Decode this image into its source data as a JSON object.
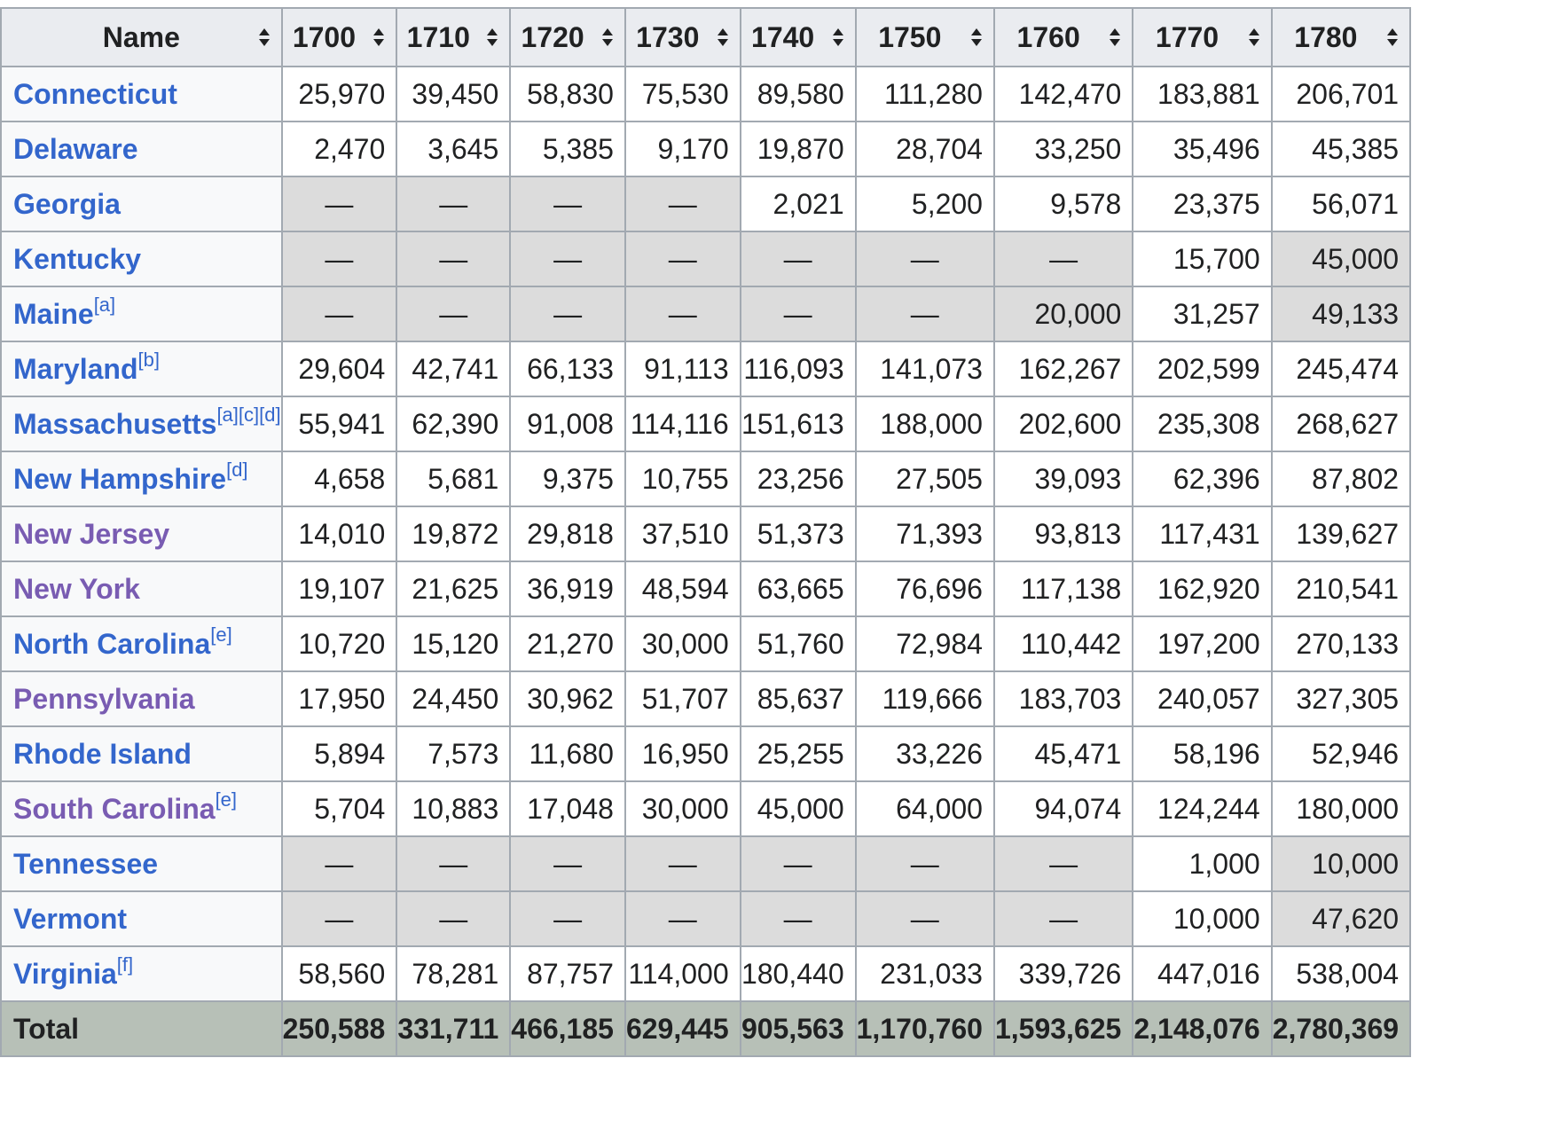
{
  "columns": [
    "Name",
    "1700",
    "1710",
    "1720",
    "1730",
    "1740",
    "1750",
    "1760",
    "1770",
    "1780"
  ],
  "sort_icon": "sort-updown-icon",
  "colors": {
    "link": "#3366cc",
    "visited_link": "#795cb2",
    "header_bg": "#eaecf0",
    "na_cell_bg": "#dcdcdc",
    "total_bg": "#b7c0b7",
    "border": "#a2a9b1"
  },
  "rows": [
    {
      "name": "Connecticut",
      "visited": false,
      "notes": "",
      "values": [
        "25,970",
        "39,450",
        "58,830",
        "75,530",
        "89,580",
        "111,280",
        "142,470",
        "183,881",
        "206,701"
      ]
    },
    {
      "name": "Delaware",
      "visited": false,
      "notes": "",
      "values": [
        "2,470",
        "3,645",
        "5,385",
        "9,170",
        "19,870",
        "28,704",
        "33,250",
        "35,496",
        "45,385"
      ]
    },
    {
      "name": "Georgia",
      "visited": false,
      "notes": "",
      "values": [
        "—",
        "—",
        "—",
        "—",
        "2,021",
        "5,200",
        "9,578",
        "23,375",
        "56,071"
      ]
    },
    {
      "name": "Kentucky",
      "visited": false,
      "notes": "",
      "values": [
        "—",
        "—",
        "—",
        "—",
        "—",
        "—",
        "—",
        "15,700",
        "45,000"
      ],
      "shaded_values": [
        8
      ]
    },
    {
      "name": "Maine",
      "visited": false,
      "notes": "[a]",
      "values": [
        "—",
        "—",
        "—",
        "—",
        "—",
        "—",
        "20,000",
        "31,257",
        "49,133"
      ],
      "shaded_values": [
        6,
        8
      ]
    },
    {
      "name": "Maryland",
      "visited": false,
      "notes": "[b]",
      "values": [
        "29,604",
        "42,741",
        "66,133",
        "91,113",
        "116,093",
        "141,073",
        "162,267",
        "202,599",
        "245,474"
      ]
    },
    {
      "name": "Massachusetts",
      "visited": false,
      "notes": "[a][c][d]",
      "values": [
        "55,941",
        "62,390",
        "91,008",
        "114,116",
        "151,613",
        "188,000",
        "202,600",
        "235,308",
        "268,627"
      ]
    },
    {
      "name": "New Hampshire",
      "visited": false,
      "notes": "[d]",
      "values": [
        "4,658",
        "5,681",
        "9,375",
        "10,755",
        "23,256",
        "27,505",
        "39,093",
        "62,396",
        "87,802"
      ]
    },
    {
      "name": "New Jersey",
      "visited": true,
      "notes": "",
      "values": [
        "14,010",
        "19,872",
        "29,818",
        "37,510",
        "51,373",
        "71,393",
        "93,813",
        "117,431",
        "139,627"
      ]
    },
    {
      "name": "New York",
      "visited": true,
      "notes": "",
      "values": [
        "19,107",
        "21,625",
        "36,919",
        "48,594",
        "63,665",
        "76,696",
        "117,138",
        "162,920",
        "210,541"
      ]
    },
    {
      "name": "North Carolina",
      "visited": false,
      "notes": "[e]",
      "values": [
        "10,720",
        "15,120",
        "21,270",
        "30,000",
        "51,760",
        "72,984",
        "110,442",
        "197,200",
        "270,133"
      ]
    },
    {
      "name": "Pennsylvania",
      "visited": true,
      "notes": "",
      "values": [
        "17,950",
        "24,450",
        "30,962",
        "51,707",
        "85,637",
        "119,666",
        "183,703",
        "240,057",
        "327,305"
      ]
    },
    {
      "name": "Rhode Island",
      "visited": false,
      "notes": "",
      "values": [
        "5,894",
        "7,573",
        "11,680",
        "16,950",
        "25,255",
        "33,226",
        "45,471",
        "58,196",
        "52,946"
      ]
    },
    {
      "name": "South Carolina",
      "visited": true,
      "notes": "[e]",
      "values": [
        "5,704",
        "10,883",
        "17,048",
        "30,000",
        "45,000",
        "64,000",
        "94,074",
        "124,244",
        "180,000"
      ]
    },
    {
      "name": "Tennessee",
      "visited": false,
      "notes": "",
      "values": [
        "—",
        "—",
        "—",
        "—",
        "—",
        "—",
        "—",
        "1,000",
        "10,000"
      ],
      "shaded_values": [
        8
      ]
    },
    {
      "name": "Vermont",
      "visited": false,
      "notes": "",
      "values": [
        "—",
        "—",
        "—",
        "—",
        "—",
        "—",
        "—",
        "10,000",
        "47,620"
      ],
      "shaded_values": [
        8
      ]
    },
    {
      "name": "Virginia",
      "visited": false,
      "notes": "[f]",
      "values": [
        "58,560",
        "78,281",
        "87,757",
        "114,000",
        "180,440",
        "231,033",
        "339,726",
        "447,016",
        "538,004"
      ]
    }
  ],
  "total": {
    "name": "Total",
    "values": [
      "250,588",
      "331,711",
      "466,185",
      "629,445",
      "905,563",
      "1,170,760",
      "1,593,625",
      "2,148,076",
      "2,780,369"
    ]
  }
}
